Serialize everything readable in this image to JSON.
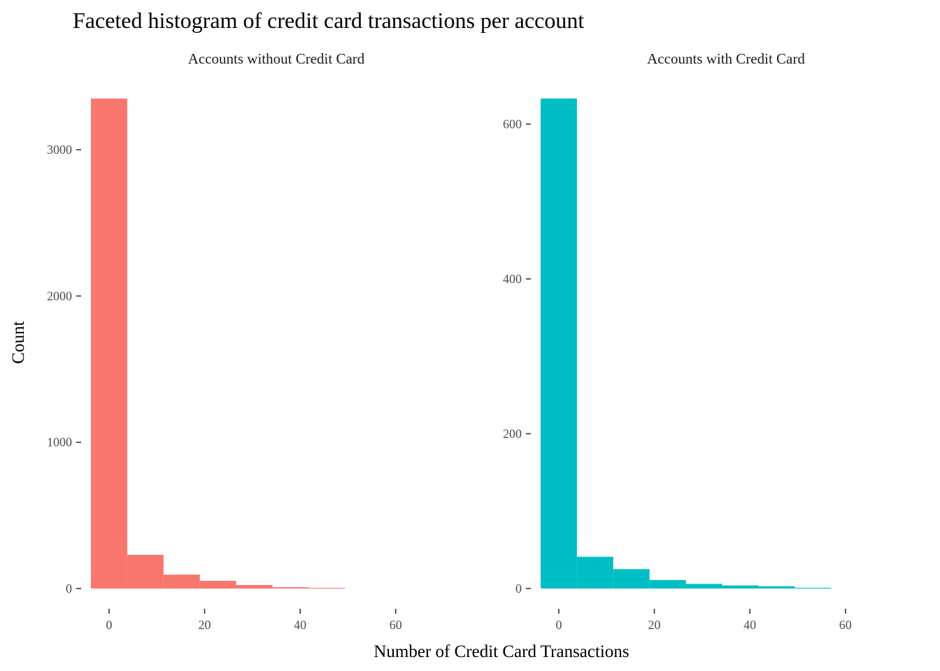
{
  "chart_data": {
    "type": "bar",
    "title": "Faceted histogram of credit card transactions per account",
    "xlabel": "Number of Credit Card Transactions",
    "ylabel": "Count",
    "grid": false,
    "legend": "none",
    "bin_width": 7.6,
    "panels": [
      {
        "label": "Accounts without Credit Card",
        "color": "#F8766D",
        "bin_centers": [
          0,
          7.6,
          15.2,
          22.8,
          30.4,
          38,
          45.6
        ],
        "values": [
          3350,
          230,
          95,
          53,
          24,
          9,
          4
        ],
        "xlim": [
          -3.8,
          60
        ],
        "xticks": [
          0,
          20,
          40,
          60
        ],
        "ylim": [
          0,
          3350
        ],
        "yticks": [
          0,
          1000,
          2000,
          3000
        ]
      },
      {
        "label": "Accounts with Credit Card",
        "color": "#00BFC4",
        "bin_centers": [
          0,
          7.6,
          15.2,
          22.8,
          30.4,
          38,
          45.6,
          53.2
        ],
        "values": [
          633,
          41,
          25,
          11,
          6,
          4,
          3,
          1
        ],
        "xlim": [
          -3.8,
          60
        ],
        "xticks": [
          0,
          20,
          40,
          60
        ],
        "ylim": [
          0,
          633
        ],
        "yticks": [
          0,
          200,
          400,
          600
        ]
      }
    ]
  }
}
